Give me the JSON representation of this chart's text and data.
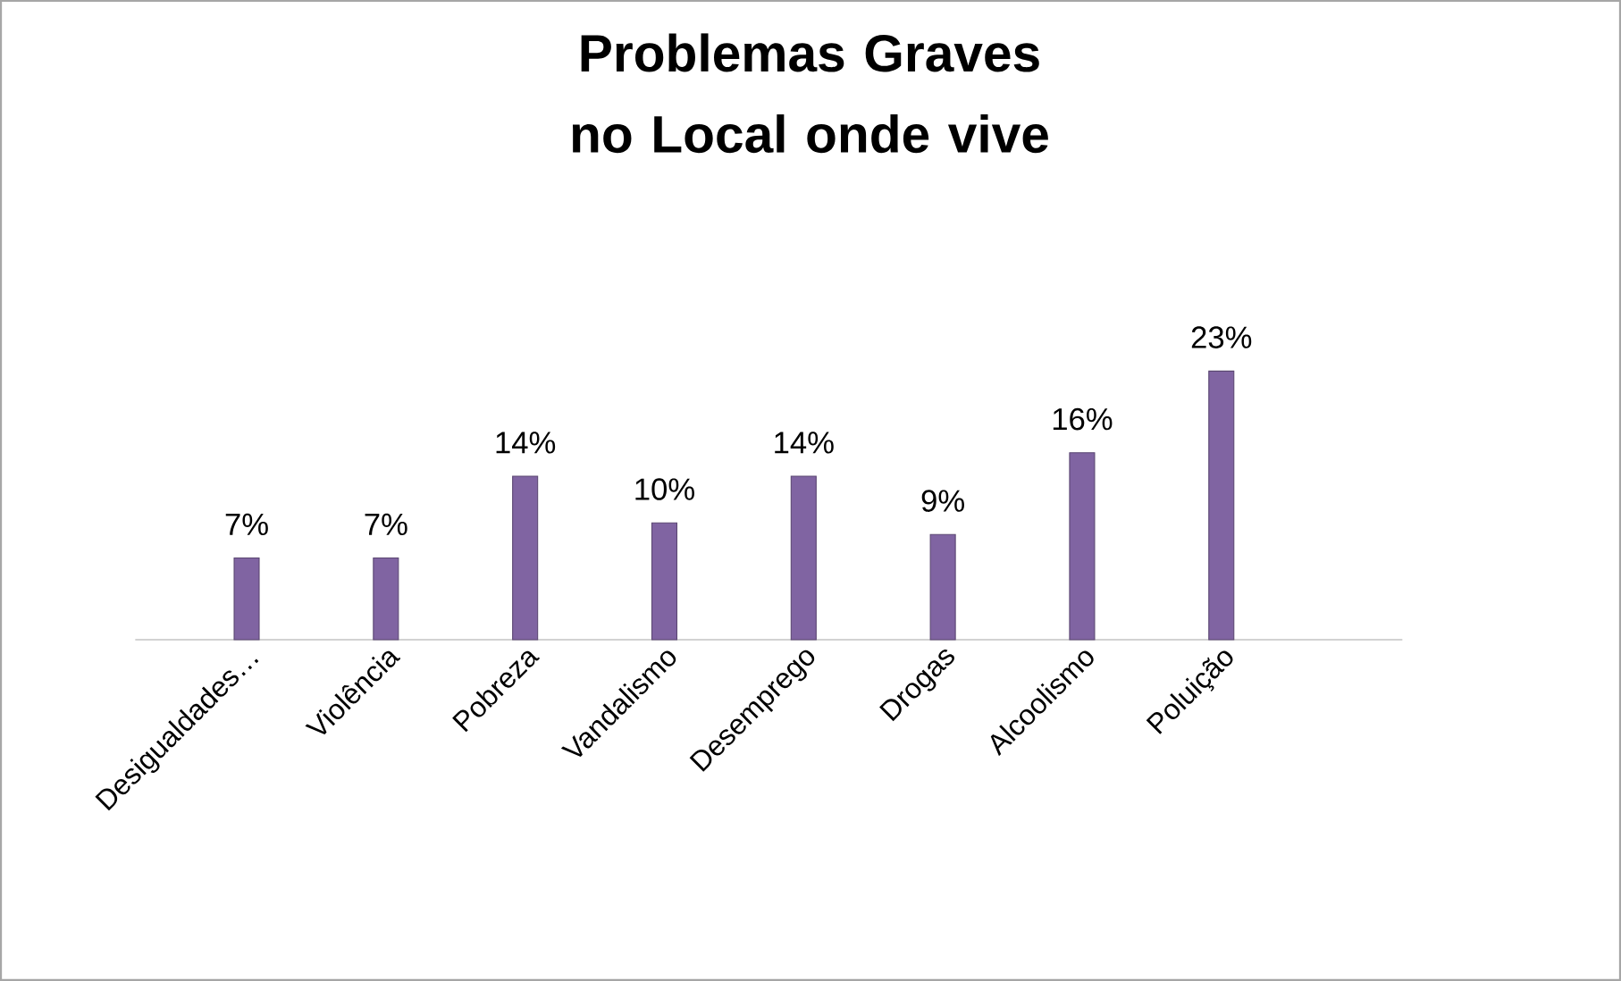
{
  "chart_data": {
    "type": "bar",
    "title": "Problemas Graves no Local onde vive",
    "categories": [
      "Desigualdades…",
      "Violência",
      "Pobreza",
      "Vandalismo",
      "Desemprego",
      "Drogas",
      "Alcoolismo",
      "Poluição"
    ],
    "values": [
      7,
      7,
      14,
      10,
      14,
      9,
      16,
      23
    ],
    "value_labels": [
      "7%",
      "7%",
      "14%",
      "10%",
      "14%",
      "9%",
      "16%",
      "23%"
    ],
    "color": "#8064a2",
    "grid": false
  }
}
